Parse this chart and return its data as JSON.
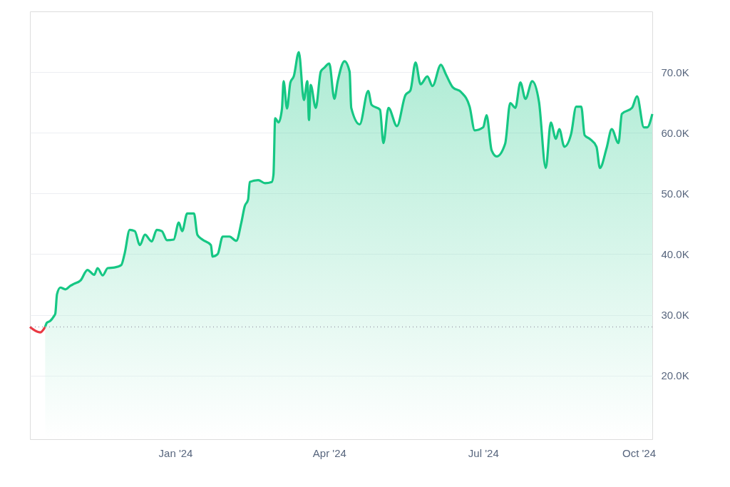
{
  "chart_data": {
    "type": "area",
    "xlim": [
      "2023-10-07",
      "2024-10-09"
    ],
    "xticks": [
      {
        "value": "2024-01-01",
        "label": "Jan '24"
      },
      {
        "value": "2024-04-01",
        "label": "Apr '24"
      },
      {
        "value": "2024-07-01",
        "label": "Jul '24"
      },
      {
        "value": "2024-10-01",
        "label": "Oct '24"
      }
    ],
    "ylim": [
      9500,
      80000
    ],
    "yticks": [
      {
        "value": 20000,
        "label": "20.0K"
      },
      {
        "value": 30000,
        "label": "30.0K"
      },
      {
        "value": 40000,
        "label": "40.0K"
      },
      {
        "value": 50000,
        "label": "50.0K"
      },
      {
        "value": 60000,
        "label": "60.0K"
      },
      {
        "value": 70000,
        "label": "70.0K"
      }
    ],
    "grid": "y",
    "ref_lines": [
      {
        "axis": "y",
        "value": 28000,
        "color": "#a0a4ae",
        "line_style": "dotted"
      }
    ],
    "series": [
      {
        "type": "line",
        "color": "#ea3943",
        "x": [
          "2023-10-07",
          "2023-10-10",
          "2023-10-13",
          "2023-10-16"
        ],
        "values": [
          28000,
          27400,
          27100,
          28000
        ]
      },
      {
        "type": "area",
        "color": "#16c784",
        "x": [
          "2023-10-16",
          "2023-10-17",
          "2023-10-19",
          "2023-10-21",
          "2023-10-22",
          "2023-10-23",
          "2023-10-25",
          "2023-10-28",
          "2023-10-31",
          "2023-11-02",
          "2023-11-06",
          "2023-11-10",
          "2023-11-14",
          "2023-11-16",
          "2023-11-19",
          "2023-11-22",
          "2023-11-26",
          "2023-11-30",
          "2023-12-02",
          "2023-12-05",
          "2023-12-08",
          "2023-12-11",
          "2023-12-14",
          "2023-12-18",
          "2023-12-21",
          "2023-12-24",
          "2023-12-27",
          "2023-12-31",
          "2024-01-03",
          "2024-01-05",
          "2024-01-08",
          "2024-01-12",
          "2024-01-14",
          "2024-01-17",
          "2024-01-22",
          "2024-01-23",
          "2024-01-26",
          "2024-01-29",
          "2024-02-02",
          "2024-02-06",
          "2024-02-09",
          "2024-02-11",
          "2024-02-13",
          "2024-02-14",
          "2024-02-19",
          "2024-02-23",
          "2024-02-27",
          "2024-02-28",
          "2024-02-29",
          "2024-03-02",
          "2024-03-04",
          "2024-03-05",
          "2024-03-07",
          "2024-03-09",
          "2024-03-11",
          "2024-03-14",
          "2024-03-17",
          "2024-03-19",
          "2024-03-20",
          "2024-03-21",
          "2024-03-24",
          "2024-03-27",
          "2024-03-29",
          "2024-04-01",
          "2024-04-04",
          "2024-04-06",
          "2024-04-10",
          "2024-04-13",
          "2024-04-14",
          "2024-04-19",
          "2024-04-24",
          "2024-04-26",
          "2024-05-01",
          "2024-05-03",
          "2024-05-06",
          "2024-05-11",
          "2024-05-16",
          "2024-05-19",
          "2024-05-22",
          "2024-05-25",
          "2024-05-29",
          "2024-06-01",
          "2024-06-06",
          "2024-06-09",
          "2024-06-13",
          "2024-06-18",
          "2024-06-23",
          "2024-06-26",
          "2024-07-01",
          "2024-07-03",
          "2024-07-06",
          "2024-07-09",
          "2024-07-14",
          "2024-07-17",
          "2024-07-20",
          "2024-07-23",
          "2024-07-26",
          "2024-07-30",
          "2024-08-03",
          "2024-08-07",
          "2024-08-10",
          "2024-08-13",
          "2024-08-15",
          "2024-08-18",
          "2024-08-22",
          "2024-08-25",
          "2024-08-28",
          "2024-08-30",
          "2024-09-02",
          "2024-09-06",
          "2024-09-08",
          "2024-09-12",
          "2024-09-15",
          "2024-09-19",
          "2024-09-21",
          "2024-09-27",
          "2024-09-30",
          "2024-10-04",
          "2024-10-06",
          "2024-10-09"
        ],
        "values": [
          28000,
          28700,
          29000,
          29700,
          30200,
          33400,
          34500,
          34200,
          34800,
          35100,
          35700,
          37400,
          36600,
          37700,
          36500,
          37700,
          37800,
          38200,
          40100,
          44000,
          43800,
          41500,
          43200,
          42100,
          44000,
          43800,
          42300,
          42400,
          45200,
          43800,
          46700,
          46700,
          43200,
          42400,
          41500,
          39600,
          40000,
          42900,
          42900,
          42200,
          45200,
          47900,
          49000,
          51900,
          52200,
          51700,
          51900,
          53100,
          62400,
          61700,
          63900,
          68500,
          64000,
          68300,
          69300,
          73300,
          65400,
          68500,
          62100,
          67900,
          64100,
          70100,
          70700,
          71400,
          65600,
          68500,
          71800,
          70100,
          64100,
          61400,
          66900,
          64600,
          63800,
          58300,
          64100,
          61100,
          66200,
          67000,
          71600,
          68000,
          69300,
          67700,
          71200,
          69600,
          67500,
          66700,
          64300,
          60400,
          60900,
          62900,
          57100,
          56100,
          58200,
          64900,
          64100,
          68300,
          65600,
          68500,
          65100,
          54200,
          61700,
          59000,
          60600,
          57700,
          59800,
          64300,
          64300,
          59600,
          59000,
          57700,
          54200,
          57500,
          60600,
          58300,
          63100,
          64100,
          66000,
          60900,
          60900,
          63100
        ]
      }
    ]
  }
}
